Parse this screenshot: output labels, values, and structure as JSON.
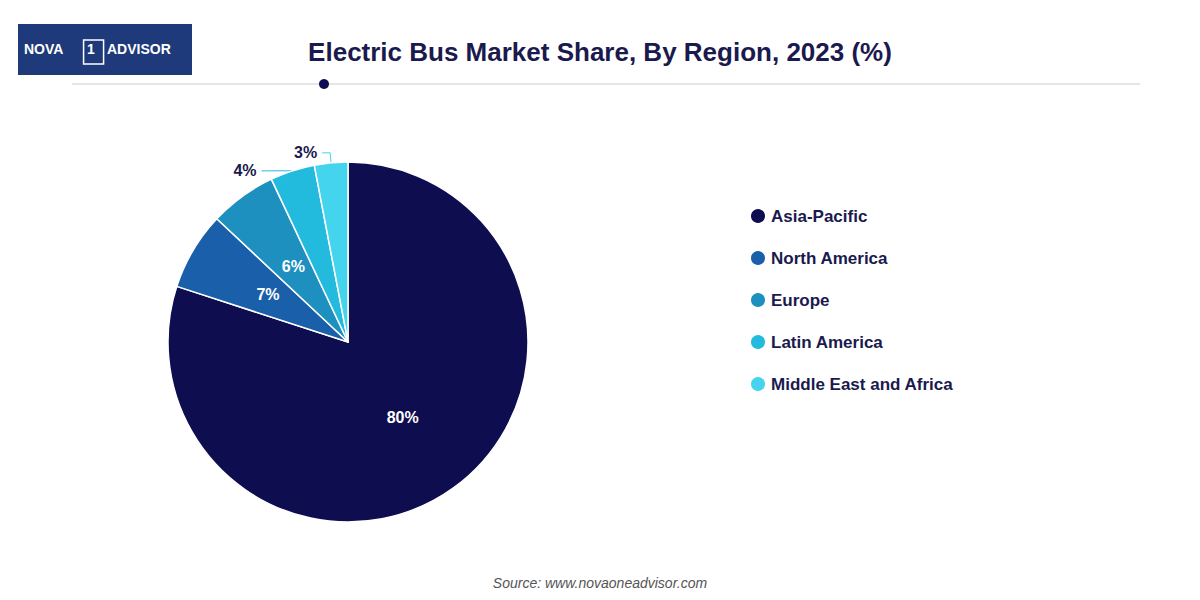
{
  "chart_data": {
    "type": "pie",
    "title": "Electric Bus Market Share, By Region, 2023 (%)",
    "categories": [
      "Asia-Pacific",
      "North America",
      "Europe",
      "Latin America",
      "Middle East and Africa"
    ],
    "values": [
      80,
      7,
      6,
      4,
      3
    ],
    "value_labels": [
      "80%",
      "7%",
      "6%",
      "4%",
      "3%"
    ],
    "colors": [
      "#0d0d50",
      "#1a5faa",
      "#1e90c0",
      "#22bbdd",
      "#44d4ee"
    ],
    "data_labels": true,
    "legend": "right",
    "annotations": [
      "NOVA",
      "1",
      "ADVISOR",
      "Source: www.novaoneadvisor.com"
    ]
  }
}
